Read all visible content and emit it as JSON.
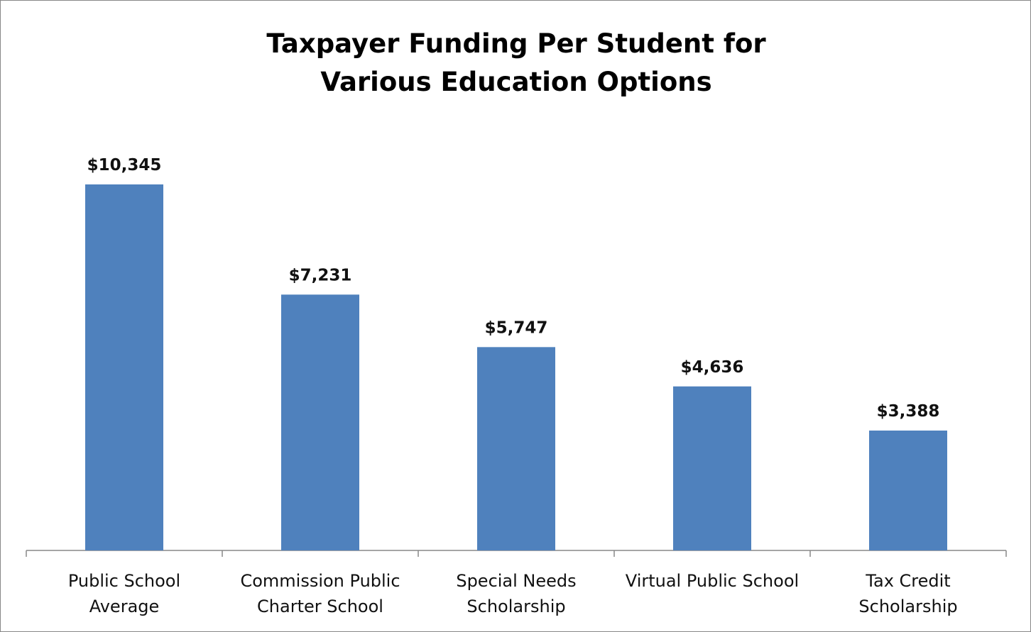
{
  "chart_data": {
    "type": "bar",
    "title": "Taxpayer Funding Per Student for\nVarious Education Options",
    "categories": [
      "Public School\nAverage",
      "Commission Public\nCharter School",
      "Special Needs\nScholarship",
      "Virtual Public School",
      "Tax Credit\nScholarship"
    ],
    "values": [
      10345,
      7231,
      5747,
      4636,
      3388
    ],
    "value_labels": [
      "$10,345",
      "$7,231",
      "$5,747",
      "$4,636",
      "$3,388"
    ],
    "color": "#4f81bd"
  }
}
